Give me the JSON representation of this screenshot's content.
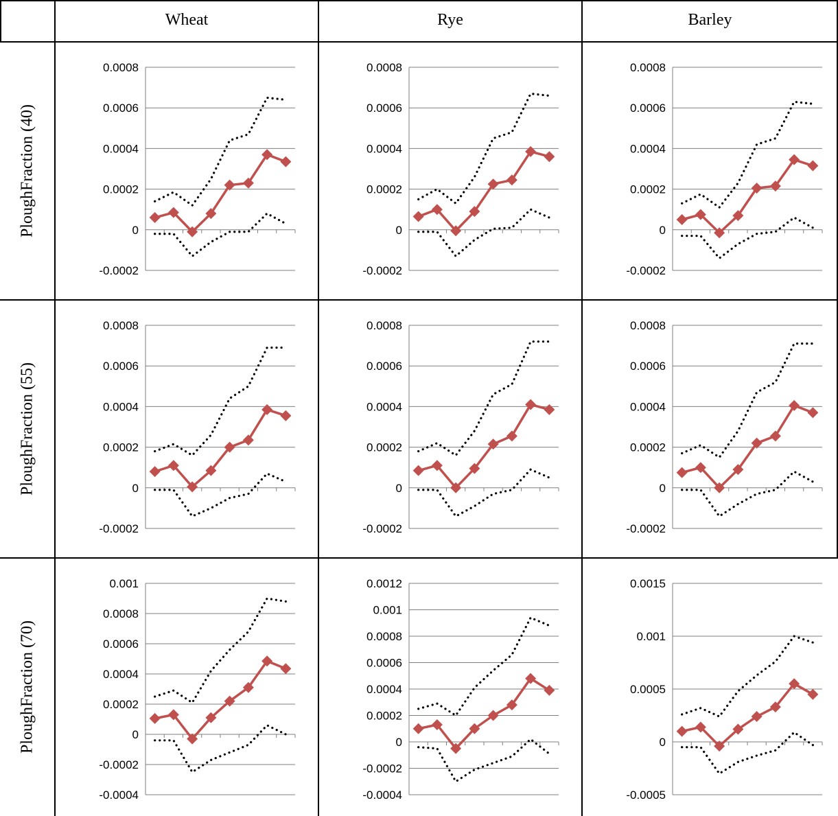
{
  "columns": [
    "Wheat",
    "Rye",
    "Barley"
  ],
  "rows": [
    "PloughFraction (40)",
    "PloughFraction (55)",
    "PloughFraction (70)"
  ],
  "colors": {
    "estimate": "#c0504d",
    "bounds": "#000000",
    "grid": "#7f7f7f",
    "border": "#000000"
  },
  "chart_data": [
    {
      "type": "line",
      "panel": "Wheat / PloughFraction (40)",
      "yticks": [
        "0.0008",
        "0.0006",
        "0.0004",
        "0.0002",
        "0",
        "-0.0002"
      ],
      "ylim": [
        -0.0002,
        0.0008
      ],
      "series": [
        {
          "style": "estimate",
          "values": [
            6e-05,
            8.5e-05,
            -1e-05,
            8e-05,
            0.00022,
            0.00023,
            0.00037,
            0.000335
          ]
        },
        {
          "style": "upper",
          "values": [
            0.00014,
            0.000185,
            0.00012,
            0.00025,
            0.00044,
            0.00047,
            0.00065,
            0.00064
          ]
        },
        {
          "style": "lower",
          "values": [
            -2e-05,
            -2e-05,
            -0.00013,
            -6e-05,
            -1e-05,
            -1e-05,
            8e-05,
            3e-05
          ]
        }
      ]
    },
    {
      "type": "line",
      "panel": "Rye / PloughFraction (40)",
      "yticks": [
        "0.0008",
        "0.0006",
        "0.0004",
        "0.0002",
        "0",
        "-0.0002"
      ],
      "ylim": [
        -0.0002,
        0.0008
      ],
      "series": [
        {
          "style": "estimate",
          "values": [
            6.5e-05,
            0.0001,
            -5e-06,
            9e-05,
            0.000225,
            0.000245,
            0.000385,
            0.00036
          ]
        },
        {
          "style": "upper",
          "values": [
            0.00015,
            0.0002,
            0.00013,
            0.00026,
            0.00045,
            0.00048,
            0.00067,
            0.00066
          ]
        },
        {
          "style": "lower",
          "values": [
            -1e-05,
            -1e-05,
            -0.00013,
            -5e-05,
            5e-06,
            1e-05,
            0.0001,
            6e-05
          ]
        }
      ]
    },
    {
      "type": "line",
      "panel": "Barley / PloughFraction (40)",
      "yticks": [
        "0.0008",
        "0.0006",
        "0.0004",
        "0.0002",
        "0",
        "-0.0002"
      ],
      "ylim": [
        -0.0002,
        0.0008
      ],
      "series": [
        {
          "style": "estimate",
          "values": [
            5e-05,
            7.5e-05,
            -1.5e-05,
            7e-05,
            0.000205,
            0.000215,
            0.000345,
            0.000315
          ]
        },
        {
          "style": "upper",
          "values": [
            0.00013,
            0.000175,
            0.00011,
            0.00023,
            0.00042,
            0.00045,
            0.00063,
            0.00062
          ]
        },
        {
          "style": "lower",
          "values": [
            -3e-05,
            -3e-05,
            -0.00014,
            -7e-05,
            -2e-05,
            -1e-05,
            6e-05,
            1e-05
          ]
        }
      ]
    },
    {
      "type": "line",
      "panel": "Wheat / PloughFraction (55)",
      "yticks": [
        "0.0008",
        "0.0006",
        "0.0004",
        "0.0002",
        "0",
        "-0.0002"
      ],
      "ylim": [
        -0.0002,
        0.0008
      ],
      "series": [
        {
          "style": "estimate",
          "values": [
            8e-05,
            0.00011,
            5e-06,
            8.5e-05,
            0.0002,
            0.000235,
            0.000385,
            0.000355
          ]
        },
        {
          "style": "upper",
          "values": [
            0.00018,
            0.000215,
            0.00016,
            0.00026,
            0.00044,
            0.0005,
            0.00069,
            0.00069
          ]
        },
        {
          "style": "lower",
          "values": [
            -1e-05,
            -1e-05,
            -0.00014,
            -0.0001,
            -5e-05,
            -3e-05,
            7e-05,
            3e-05
          ]
        }
      ]
    },
    {
      "type": "line",
      "panel": "Rye / PloughFraction (55)",
      "yticks": [
        "0.0008",
        "0.0006",
        "0.0004",
        "0.0002",
        "0",
        "-0.0002"
      ],
      "ylim": [
        -0.0002,
        0.0008
      ],
      "series": [
        {
          "style": "estimate",
          "values": [
            8.5e-05,
            0.00011,
            0.0,
            9.5e-05,
            0.000215,
            0.000255,
            0.00041,
            0.000385
          ]
        },
        {
          "style": "upper",
          "values": [
            0.00018,
            0.00022,
            0.00016,
            0.00028,
            0.00046,
            0.00051,
            0.00072,
            0.00072
          ]
        },
        {
          "style": "lower",
          "values": [
            -1e-05,
            -1e-05,
            -0.00014,
            -9e-05,
            -3e-05,
            -1e-05,
            9e-05,
            5e-05
          ]
        }
      ]
    },
    {
      "type": "line",
      "panel": "Barley / PloughFraction (55)",
      "yticks": [
        "0.0008",
        "0.0006",
        "0.0004",
        "0.0002",
        "0",
        "-0.0002"
      ],
      "ylim": [
        -0.0002,
        0.0008
      ],
      "series": [
        {
          "style": "estimate",
          "values": [
            7.5e-05,
            0.0001,
            0.0,
            9e-05,
            0.00022,
            0.000255,
            0.000405,
            0.00037
          ]
        },
        {
          "style": "upper",
          "values": [
            0.00017,
            0.00021,
            0.00015,
            0.00028,
            0.00047,
            0.00052,
            0.00071,
            0.00071
          ]
        },
        {
          "style": "lower",
          "values": [
            -1e-05,
            -1e-05,
            -0.00014,
            -8e-05,
            -3e-05,
            -1e-05,
            8e-05,
            3e-05
          ]
        }
      ]
    },
    {
      "type": "line",
      "panel": "Wheat / PloughFraction (70)",
      "yticks": [
        "0.001",
        "0.0008",
        "0.0006",
        "0.0004",
        "0.0002",
        "0",
        "-0.0002",
        "-0.0004"
      ],
      "ylim": [
        -0.0004,
        0.001
      ],
      "series": [
        {
          "style": "estimate",
          "values": [
            0.000105,
            0.00013,
            -3e-05,
            0.00011,
            0.00022,
            0.00031,
            0.000485,
            0.000435
          ]
        },
        {
          "style": "upper",
          "values": [
            0.00025,
            0.00029,
            0.00021,
            0.00042,
            0.00056,
            0.00068,
            0.0009,
            0.00088
          ]
        },
        {
          "style": "lower",
          "values": [
            -4e-05,
            -4e-05,
            -0.00025,
            -0.00017,
            -0.00012,
            -7e-05,
            6e-05,
            0.0
          ]
        }
      ]
    },
    {
      "type": "line",
      "panel": "Rye / PloughFraction (70)",
      "yticks": [
        "0.0012",
        "0.001",
        "0.0008",
        "0.0006",
        "0.0004",
        "0.0002",
        "0",
        "-0.0002",
        "-0.0004"
      ],
      "ylim": [
        -0.0004,
        0.0012
      ],
      "series": [
        {
          "style": "estimate",
          "values": [
            0.0001,
            0.00013,
            -5e-05,
            0.0001,
            0.0002,
            0.00028,
            0.00048,
            0.00039
          ]
        },
        {
          "style": "upper",
          "values": [
            0.00025,
            0.00029,
            0.0002,
            0.00041,
            0.00054,
            0.00066,
            0.00094,
            0.00088
          ]
        },
        {
          "style": "lower",
          "values": [
            -4e-05,
            -5e-05,
            -0.0003,
            -0.00021,
            -0.00016,
            -0.00011,
            2e-05,
            -9e-05
          ]
        }
      ]
    },
    {
      "type": "line",
      "panel": "Barley / PloughFraction (70)",
      "yticks": [
        "0.0015",
        "0.001",
        "0.0005",
        "0",
        "-0.0005"
      ],
      "ylim": [
        -0.0005,
        0.0015
      ],
      "series": [
        {
          "style": "estimate",
          "values": [
            0.0001,
            0.00014,
            -4e-05,
            0.00012,
            0.00024,
            0.00033,
            0.00055,
            0.00045
          ]
        },
        {
          "style": "upper",
          "values": [
            0.00026,
            0.00032,
            0.00024,
            0.00048,
            0.00063,
            0.00076,
            0.001,
            0.00094
          ]
        },
        {
          "style": "lower",
          "values": [
            -5e-05,
            -5e-05,
            -0.0003,
            -0.00019,
            -0.00013,
            -8e-05,
            9e-05,
            -3e-05
          ]
        }
      ]
    }
  ]
}
